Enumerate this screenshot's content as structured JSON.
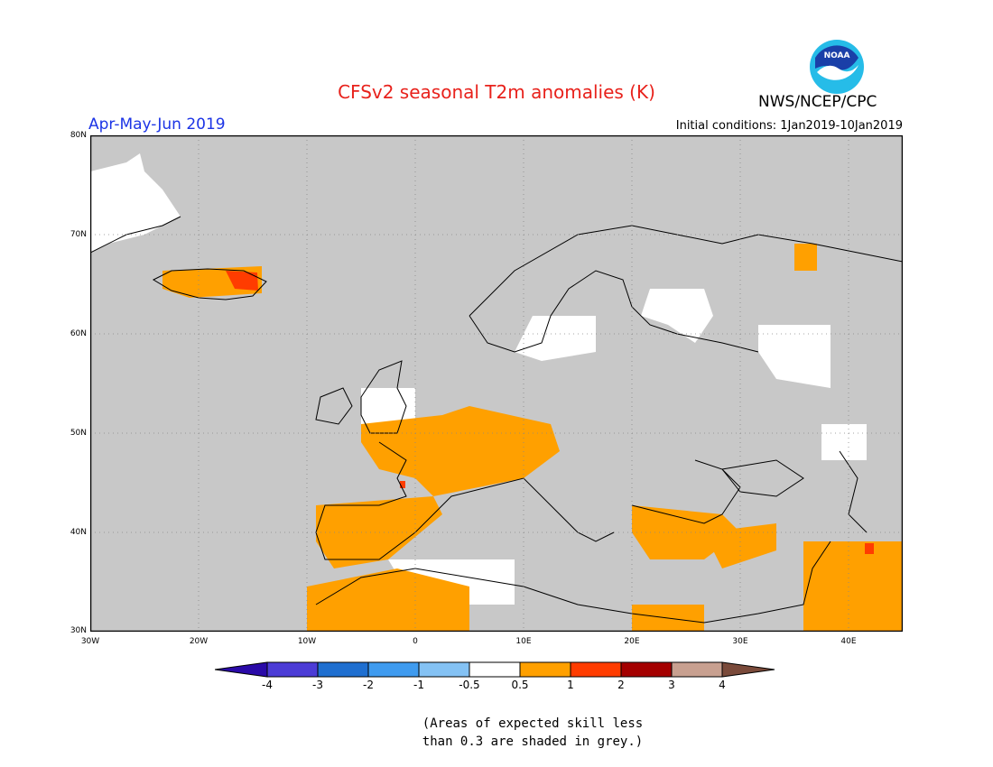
{
  "header": {
    "title": "CFSv2 seasonal T2m anomalies (K)",
    "period": "Apr-May-Jun 2019",
    "initial_conditions": "Initial conditions: 1Jan2019-10Jan2019",
    "agency": "NWS/NCEP/CPC",
    "logo_text": "NOAA"
  },
  "map": {
    "lat_labels": [
      "80N",
      "70N",
      "60N",
      "50N",
      "40N",
      "30N"
    ],
    "lon_labels": [
      "30W",
      "20W",
      "10W",
      "0",
      "10E",
      "20E",
      "30E",
      "40E"
    ],
    "colors": {
      "background_grey": "#c8c8c8",
      "neutral_white": "#ffffff",
      "warm_05_1": "#ffa000",
      "warm_1_2": "#ff3c00",
      "coast": "#000000"
    }
  },
  "legend": {
    "labels": [
      "-4",
      "-3",
      "-2",
      "-1",
      "-0.5",
      "0.5",
      "1",
      "2",
      "3",
      "4"
    ],
    "colors": [
      "#2a0aa8",
      "#4c3cd6",
      "#1f6fd0",
      "#3f9bef",
      "#84c2f4",
      "#ffffff",
      "#ffa000",
      "#ff3c00",
      "#a40000",
      "#c8a090",
      "#7a4a3a"
    ]
  },
  "note": {
    "line1": "(Areas of expected skill less",
    "line2": "than 0.3 are shaded in grey.)"
  }
}
